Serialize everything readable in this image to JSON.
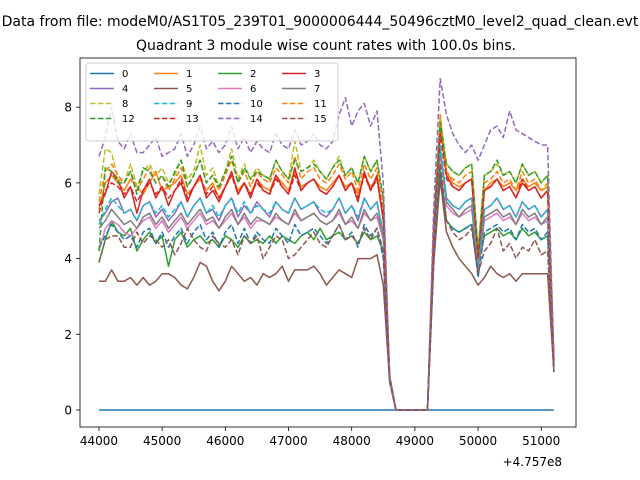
{
  "figure": {
    "suptitle": "Data from file: modeM0/AS1T05_239T01_9000006444_50496cztM0_level2_quad_clean.evt",
    "title": "Quadrant 3 module wise count rates with 100.0s bins.",
    "x_offset_label": "+4.757e8"
  },
  "chart_data": {
    "type": "line",
    "title": "Quadrant 3 module wise count rates with 100.0s bins.",
    "xlabel": "",
    "ylabel": "",
    "x_offset": 475700000,
    "xlim": [
      43700,
      51550
    ],
    "ylim": [
      -0.45,
      9.3
    ],
    "xticks": [
      44000,
      45000,
      46000,
      47000,
      48000,
      49000,
      50000,
      51000
    ],
    "yticks": [
      0,
      2,
      4,
      6,
      8
    ],
    "grid": false,
    "legend": {
      "placement": "top-left",
      "ncol": 4
    },
    "x": {
      "start": 44000,
      "step": 100,
      "count": 73
    },
    "series": [
      {
        "name": "0",
        "color": "#1f77b4",
        "dashed": false,
        "values": [
          0,
          0,
          0,
          0,
          0,
          0,
          0,
          0,
          0,
          0,
          0,
          0,
          0,
          0,
          0,
          0,
          0,
          0,
          0,
          0,
          0,
          0,
          0,
          0,
          0,
          0,
          0,
          0,
          0,
          0,
          0,
          0,
          0,
          0,
          0,
          0,
          0,
          0,
          0,
          0,
          0,
          0,
          0,
          0,
          0,
          0,
          0,
          0,
          0,
          0,
          0,
          0,
          0,
          0,
          0,
          0,
          0,
          0,
          0,
          0,
          0,
          0,
          0,
          0,
          0,
          0,
          0,
          0,
          0,
          0,
          0,
          0,
          0
        ]
      },
      {
        "name": "1",
        "color": "#ff7f0e",
        "dashed": false,
        "values": [
          5.3,
          6.0,
          6.2,
          6.0,
          5.8,
          6.1,
          5.9,
          5.7,
          6.0,
          6.3,
          5.8,
          5.9,
          6.0,
          6.2,
          5.7,
          5.9,
          6.1,
          5.8,
          6.0,
          5.6,
          5.9,
          6.2,
          5.8,
          6.0,
          5.7,
          6.1,
          5.9,
          5.8,
          6.2,
          6.0,
          5.8,
          6.3,
          5.9,
          6.0,
          6.1,
          5.9,
          5.8,
          6.0,
          6.2,
          5.9,
          6.0,
          5.7,
          6.2,
          5.9,
          6.1,
          5.0,
          0.9,
          0,
          0,
          0,
          0,
          0,
          0,
          4.6,
          7.8,
          6.3,
          6.0,
          5.9,
          6.0,
          6.1,
          3.9,
          5.8,
          6.0,
          6.1,
          5.9,
          6.0,
          5.8,
          6.1,
          5.9,
          6.0,
          5.8,
          5.9,
          1.3
        ]
      },
      {
        "name": "2",
        "color": "#2ca02c",
        "dashed": false,
        "values": [
          3.9,
          4.5,
          5.0,
          4.7,
          4.6,
          4.8,
          4.2,
          4.5,
          4.7,
          4.4,
          4.6,
          3.8,
          4.5,
          4.7,
          4.3,
          4.5,
          4.6,
          4.4,
          4.5,
          4.3,
          4.6,
          4.5,
          4.3,
          4.6,
          4.4,
          4.5,
          4.4,
          4.6,
          4.4,
          4.6,
          4.5,
          4.4,
          4.6,
          4.7,
          4.5,
          4.8,
          4.5,
          4.6,
          4.7,
          4.5,
          4.6,
          4.4,
          4.7,
          4.5,
          4.6,
          4.2,
          0.8,
          0,
          0,
          0,
          0,
          0,
          0,
          4.2,
          6.3,
          5.0,
          4.8,
          4.7,
          4.8,
          4.9,
          3.8,
          4.6,
          4.7,
          4.8,
          4.6,
          4.7,
          4.5,
          4.8,
          4.6,
          4.7,
          4.5,
          4.6,
          1.1
        ]
      },
      {
        "name": "3",
        "color": "#d62728",
        "dashed": false,
        "values": [
          5.4,
          5.7,
          6.3,
          6.1,
          5.6,
          5.9,
          5.2,
          5.8,
          6.1,
          5.6,
          5.9,
          5.4,
          5.8,
          6.0,
          5.5,
          5.9,
          6.2,
          5.6,
          5.8,
          5.5,
          5.9,
          6.3,
          5.7,
          6.0,
          5.6,
          6.1,
          5.8,
          5.7,
          6.2,
          5.9,
          5.7,
          6.4,
          5.8,
          6.0,
          6.1,
          5.8,
          5.7,
          5.9,
          6.2,
          5.8,
          6.0,
          5.5,
          6.3,
          5.8,
          6.2,
          5.0,
          0.9,
          0,
          0,
          0,
          0,
          0,
          0,
          4.7,
          7.5,
          6.2,
          5.9,
          5.8,
          6.0,
          6.1,
          3.9,
          5.8,
          5.9,
          6.1,
          5.8,
          5.9,
          5.6,
          6.0,
          5.8,
          5.9,
          5.6,
          5.8,
          1.3
        ]
      },
      {
        "name": "4",
        "color": "#9467bd",
        "dashed": false,
        "values": [
          5.0,
          5.2,
          5.5,
          5.6,
          5.2,
          5.3,
          5.0,
          5.4,
          5.5,
          5.1,
          5.3,
          5.0,
          5.2,
          5.5,
          5.1,
          5.4,
          5.6,
          5.2,
          5.3,
          5.0,
          5.4,
          5.6,
          5.1,
          5.4,
          5.2,
          5.5,
          5.3,
          5.1,
          5.5,
          5.3,
          5.2,
          5.6,
          5.3,
          5.4,
          5.5,
          5.2,
          5.1,
          5.3,
          5.6,
          5.2,
          5.4,
          5.0,
          5.6,
          5.3,
          5.5,
          4.6,
          0.8,
          0,
          0,
          0,
          0,
          0,
          0,
          4.4,
          6.9,
          5.6,
          5.4,
          5.3,
          5.5,
          5.6,
          3.8,
          5.3,
          5.4,
          5.6,
          5.3,
          5.4,
          5.1,
          5.5,
          5.3,
          5.4,
          5.1,
          5.3,
          1.2
        ]
      },
      {
        "name": "5",
        "color": "#8c564b",
        "dashed": false,
        "values": [
          3.4,
          3.4,
          3.7,
          3.4,
          3.4,
          3.5,
          3.3,
          3.5,
          3.3,
          3.4,
          3.6,
          3.6,
          3.5,
          3.3,
          3.2,
          3.5,
          3.9,
          3.8,
          3.4,
          3.15,
          3.4,
          3.8,
          3.6,
          3.4,
          3.5,
          3.3,
          3.6,
          3.5,
          3.6,
          3.8,
          3.4,
          3.7,
          3.7,
          3.7,
          3.8,
          3.6,
          3.3,
          3.5,
          3.7,
          3.6,
          3.5,
          4.0,
          4.0,
          4.0,
          4.1,
          3.3,
          0.75,
          0,
          0,
          0,
          0,
          0,
          0,
          3.9,
          6.1,
          4.7,
          4.3,
          4.0,
          3.8,
          3.6,
          3.3,
          3.5,
          3.8,
          3.6,
          3.5,
          3.6,
          3.4,
          3.6,
          3.6,
          3.6,
          3.6,
          3.6,
          1.0
        ]
      },
      {
        "name": "6",
        "color": "#e377c2",
        "dashed": false,
        "values": [
          4.2,
          4.8,
          5.0,
          4.9,
          4.7,
          4.6,
          4.8,
          5.0,
          5.1,
          4.8,
          5.0,
          4.7,
          4.9,
          5.1,
          4.8,
          5.0,
          5.2,
          4.9,
          5.0,
          4.8,
          5.0,
          5.2,
          4.9,
          5.1,
          4.8,
          5.0,
          5.0,
          4.9,
          5.1,
          5.0,
          4.9,
          5.2,
          5.0,
          5.1,
          5.2,
          5.0,
          4.9,
          5.0,
          5.2,
          4.9,
          5.0,
          4.8,
          5.2,
          5.0,
          5.1,
          4.5,
          0.8,
          0,
          0,
          0,
          0,
          0,
          0,
          4.3,
          6.8,
          5.4,
          5.2,
          5.1,
          5.2,
          5.3,
          3.7,
          5.0,
          5.1,
          5.2,
          5.0,
          5.1,
          4.9,
          5.2,
          5.0,
          5.1,
          4.9,
          5.0,
          1.1
        ]
      },
      {
        "name": "7",
        "color": "#7f7f7f",
        "dashed": false,
        "values": [
          4.8,
          5.0,
          5.3,
          5.1,
          4.9,
          5.0,
          4.8,
          5.1,
          5.2,
          4.9,
          5.1,
          4.8,
          5.0,
          5.2,
          4.9,
          5.1,
          5.3,
          5.0,
          5.1,
          4.8,
          5.1,
          5.3,
          4.9,
          5.2,
          4.9,
          5.1,
          5.0,
          4.9,
          5.2,
          5.0,
          4.9,
          5.3,
          5.0,
          5.1,
          5.2,
          5.0,
          4.9,
          5.0,
          5.3,
          4.9,
          5.1,
          4.8,
          5.3,
          5.0,
          5.2,
          4.6,
          0.8,
          0,
          0,
          0,
          0,
          0,
          0,
          4.4,
          6.9,
          5.5,
          5.3,
          5.1,
          5.3,
          5.4,
          3.8,
          5.1,
          5.2,
          5.3,
          5.1,
          5.2,
          4.9,
          5.3,
          5.1,
          5.2,
          4.9,
          5.1,
          1.2
        ]
      },
      {
        "name": "8",
        "color": "#bcbd22",
        "dashed": true,
        "values": [
          5.7,
          6.9,
          6.8,
          6.1,
          6.0,
          6.5,
          5.9,
          6.3,
          6.5,
          6.2,
          6.4,
          6.0,
          6.2,
          6.6,
          6.1,
          6.3,
          7.0,
          6.2,
          6.4,
          5.9,
          6.3,
          6.9,
          6.1,
          6.5,
          6.1,
          6.4,
          6.2,
          6.1,
          6.6,
          6.3,
          6.1,
          7.1,
          6.3,
          6.4,
          6.6,
          6.3,
          6.1,
          6.4,
          6.7,
          6.2,
          6.4,
          6.0,
          6.7,
          6.3,
          6.6,
          5.5,
          0.9,
          0,
          0,
          0,
          0,
          0,
          0,
          5.0,
          7.7,
          6.5,
          6.3,
          6.2,
          6.4,
          6.5,
          4.2,
          6.2,
          6.3,
          6.5,
          6.2,
          6.3,
          6.0,
          6.5,
          6.2,
          6.3,
          6.0,
          6.2,
          1.4
        ]
      },
      {
        "name": "9",
        "color": "#17becf",
        "dashed": true,
        "values": [
          4.9,
          5.3,
          5.6,
          5.4,
          5.2,
          5.3,
          5.0,
          5.4,
          5.5,
          5.2,
          5.4,
          5.1,
          5.3,
          5.5,
          5.1,
          5.4,
          5.6,
          5.2,
          5.4,
          5.1,
          5.4,
          5.6,
          5.2,
          5.5,
          5.2,
          5.4,
          5.3,
          5.2,
          5.5,
          5.3,
          5.2,
          5.6,
          5.3,
          5.4,
          5.5,
          5.3,
          5.2,
          5.3,
          5.6,
          5.2,
          5.4,
          5.1,
          5.6,
          5.3,
          5.5,
          4.7,
          0.85,
          0,
          0,
          0,
          0,
          0,
          0,
          4.5,
          7.0,
          5.6,
          5.4,
          5.3,
          5.5,
          5.6,
          3.9,
          5.3,
          5.4,
          5.6,
          5.3,
          5.4,
          5.1,
          5.5,
          5.3,
          5.4,
          5.1,
          5.3,
          1.2
        ]
      },
      {
        "name": "10",
        "color": "#1f77b4",
        "dashed": true,
        "values": [
          4.3,
          4.6,
          4.9,
          4.7,
          4.5,
          4.6,
          4.3,
          4.7,
          4.8,
          4.4,
          4.7,
          4.3,
          4.6,
          4.8,
          4.4,
          4.7,
          4.9,
          4.5,
          4.7,
          4.3,
          4.7,
          4.9,
          4.4,
          4.8,
          4.4,
          4.7,
          4.5,
          4.4,
          4.8,
          4.6,
          4.4,
          4.9,
          4.6,
          4.7,
          4.8,
          4.6,
          4.4,
          4.6,
          4.9,
          4.5,
          4.7,
          4.3,
          4.9,
          4.6,
          4.8,
          4.0,
          0.75,
          0,
          0,
          0,
          0,
          0,
          0,
          4.0,
          6.4,
          5.0,
          4.8,
          4.7,
          4.8,
          4.9,
          3.5,
          4.7,
          4.8,
          4.9,
          4.7,
          4.8,
          4.5,
          4.9,
          4.7,
          4.8,
          4.5,
          4.7,
          1.05
        ]
      },
      {
        "name": "11",
        "color": "#ff7f0e",
        "dashed": true,
        "values": [
          5.5,
          6.3,
          6.5,
          6.2,
          6.0,
          6.3,
          5.8,
          6.1,
          6.4,
          6.0,
          6.2,
          5.8,
          6.1,
          6.4,
          5.9,
          6.2,
          6.6,
          6.0,
          6.2,
          5.8,
          6.2,
          6.6,
          6.0,
          6.3,
          5.9,
          6.3,
          6.1,
          6.0,
          6.4,
          6.2,
          6.0,
          6.7,
          6.1,
          6.3,
          6.4,
          6.1,
          6.0,
          6.2,
          6.5,
          6.1,
          6.3,
          5.8,
          6.5,
          6.1,
          6.4,
          5.2,
          0.9,
          0,
          0,
          0,
          0,
          0,
          0,
          4.8,
          7.6,
          6.3,
          6.1,
          6.0,
          6.2,
          6.3,
          4.0,
          6.0,
          6.1,
          6.3,
          6.0,
          6.1,
          5.8,
          6.3,
          6.0,
          6.1,
          5.8,
          6.0,
          1.3
        ]
      },
      {
        "name": "12",
        "color": "#2ca02c",
        "dashed": true,
        "values": [
          4.2,
          6.4,
          6.3,
          6.0,
          6.0,
          6.3,
          5.7,
          6.4,
          6.3,
          6.0,
          6.2,
          5.9,
          6.3,
          6.6,
          5.9,
          6.2,
          6.6,
          6.0,
          6.2,
          5.9,
          6.3,
          6.7,
          6.0,
          6.4,
          6.1,
          6.3,
          6.2,
          6.1,
          6.6,
          6.3,
          6.1,
          6.6,
          6.3,
          6.4,
          6.5,
          6.3,
          6.1,
          6.4,
          6.6,
          6.2,
          6.4,
          6.0,
          6.7,
          6.3,
          6.6,
          5.6,
          0.9,
          0,
          0,
          0,
          0,
          0,
          0,
          4.9,
          7.6,
          6.5,
          6.3,
          6.2,
          6.4,
          6.5,
          4.2,
          6.2,
          6.3,
          6.6,
          6.2,
          6.3,
          6.0,
          6.5,
          6.2,
          6.3,
          6.0,
          6.2,
          1.4
        ]
      },
      {
        "name": "13",
        "color": "#d62728",
        "dashed": true,
        "values": [
          5.2,
          5.8,
          6.0,
          5.9,
          5.7,
          5.9,
          5.5,
          5.8,
          6.0,
          5.7,
          5.9,
          5.6,
          5.8,
          6.1,
          5.6,
          5.9,
          6.2,
          5.7,
          5.9,
          5.6,
          5.9,
          6.2,
          5.7,
          6.0,
          5.7,
          6.0,
          5.8,
          5.7,
          6.1,
          5.9,
          5.7,
          6.2,
          5.8,
          6.0,
          6.1,
          5.8,
          5.7,
          5.9,
          6.2,
          5.8,
          6.0,
          5.6,
          6.2,
          5.8,
          6.1,
          5.2,
          0.9,
          0,
          0,
          0,
          0,
          0,
          0,
          4.7,
          7.3,
          6.1,
          5.9,
          5.8,
          6.0,
          6.1,
          4.0,
          5.8,
          5.9,
          6.1,
          5.8,
          5.9,
          5.6,
          6.1,
          5.8,
          5.9,
          5.6,
          5.8,
          1.3
        ]
      },
      {
        "name": "14",
        "color": "#9467bd",
        "dashed": true,
        "values": [
          6.7,
          7.2,
          8.0,
          7.1,
          6.9,
          7.3,
          6.8,
          6.8,
          7.0,
          7.2,
          6.7,
          6.8,
          6.9,
          7.3,
          6.7,
          7.0,
          7.5,
          6.9,
          7.1,
          6.8,
          7.0,
          7.5,
          6.9,
          7.2,
          6.8,
          7.1,
          6.9,
          6.8,
          7.3,
          7.0,
          6.9,
          7.4,
          7.0,
          7.1,
          7.3,
          7.0,
          6.9,
          7.1,
          7.8,
          8.25,
          7.5,
          7.9,
          8.1,
          7.5,
          7.9,
          6.0,
          0.9,
          0,
          0,
          0,
          0,
          0,
          0,
          5.4,
          8.75,
          7.8,
          7.3,
          7.0,
          6.8,
          7.0,
          6.6,
          7.0,
          7.4,
          7.5,
          7.2,
          7.9,
          7.4,
          7.3,
          7.2,
          7.1,
          7.0,
          7.0,
          1.3
        ]
      },
      {
        "name": "15",
        "color": "#8c564b",
        "dashed": true,
        "values": [
          3.9,
          4.5,
          4.6,
          4.6,
          4.3,
          4.3,
          4.7,
          4.4,
          4.6,
          4.5,
          4.3,
          4.5,
          4.1,
          4.4,
          4.8,
          4.5,
          4.3,
          4.2,
          4.6,
          4.4,
          4.3,
          4.5,
          4.1,
          4.6,
          4.4,
          4.6,
          4.0,
          4.3,
          4.6,
          4.5,
          4.0,
          4.1,
          4.3,
          4.5,
          4.7,
          4.4,
          4.3,
          4.6,
          4.9,
          4.5,
          4.6,
          4.4,
          4.8,
          4.5,
          4.8,
          4.2,
          0.8,
          0,
          0,
          0,
          0,
          0,
          0,
          4.0,
          6.5,
          5.0,
          4.7,
          4.5,
          4.6,
          4.8,
          3.6,
          4.2,
          4.4,
          4.8,
          4.2,
          4.4,
          4.0,
          4.3,
          4.2,
          4.5,
          4.1,
          4.2,
          1.0
        ]
      }
    ]
  }
}
